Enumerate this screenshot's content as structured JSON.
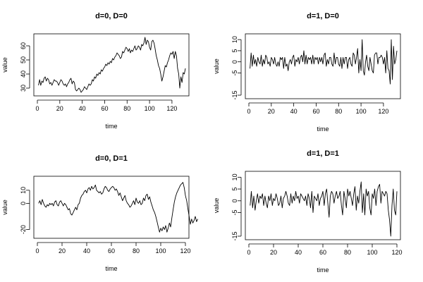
{
  "chart_data": [
    {
      "type": "line",
      "title": "d=0, D=0",
      "xlabel": "time",
      "ylabel": "value",
      "xlim": [
        0,
        132
      ],
      "ylim": [
        27,
        66
      ],
      "xticks": [
        0,
        20,
        40,
        60,
        80,
        100,
        120
      ],
      "yticks": [
        30,
        40,
        50,
        60
      ],
      "series": [
        {
          "values": [
            32,
            36,
            32,
            35,
            34,
            37,
            38,
            35,
            37,
            36,
            33,
            34,
            32,
            34,
            36,
            35,
            35,
            34,
            32,
            34,
            36,
            35,
            33,
            32,
            33,
            31,
            33,
            34,
            36,
            37,
            33,
            35,
            34,
            29,
            28,
            29,
            30,
            29,
            27,
            28,
            29,
            31,
            30,
            29,
            31,
            33,
            32,
            33,
            36,
            35,
            38,
            37,
            40,
            39,
            41,
            40,
            43,
            42,
            44,
            45,
            47,
            46,
            48,
            47,
            49,
            48,
            51,
            50,
            52,
            53,
            55,
            54,
            53,
            51,
            52,
            56,
            55,
            57,
            59,
            58,
            56,
            58,
            55,
            57,
            56,
            58,
            60,
            57,
            58,
            60,
            59,
            57,
            61,
            60,
            62,
            66,
            61,
            64,
            63,
            59,
            57,
            63,
            64,
            62,
            58,
            53,
            50,
            46,
            44,
            40,
            35,
            38,
            42,
            46,
            45,
            48,
            50,
            53,
            55,
            54,
            56,
            51,
            56,
            53,
            44,
            40,
            30,
            38,
            34,
            41,
            40,
            44
          ]
        }
      ]
    },
    {
      "type": "line",
      "title": "d=1, D=0",
      "xlabel": "time",
      "ylabel": "value",
      "xlim": [
        0,
        132
      ],
      "ylim": [
        -15,
        11
      ],
      "xticks": [
        0,
        20,
        40,
        60,
        80,
        100,
        120
      ],
      "yticks": [
        -15,
        -5,
        0,
        5,
        10
      ],
      "series": [
        {
          "values": [
            -3,
            4,
            -2,
            3,
            -1,
            1,
            -2,
            2,
            0,
            -1,
            3,
            -2,
            1,
            -1,
            3,
            2,
            -1,
            0,
            -2,
            2,
            1,
            -1,
            2,
            -1,
            -2,
            0,
            -2,
            2,
            1,
            2,
            -3,
            2,
            -2,
            -1,
            -4,
            0,
            1,
            -1,
            2,
            3,
            -2,
            1,
            0,
            2,
            -1,
            2,
            3,
            0,
            5,
            -1,
            3,
            -1,
            2,
            1,
            2,
            -1,
            3,
            -1,
            2,
            1,
            2,
            -1,
            2,
            0,
            2,
            -1,
            3,
            4,
            -2,
            1,
            -1,
            2,
            2,
            -1,
            -2,
            4,
            -1,
            2,
            2,
            -1,
            -2,
            2,
            -3,
            2,
            -1,
            2,
            2,
            -3,
            1,
            2,
            -1,
            -2,
            4,
            3,
            -1,
            2,
            6,
            -5,
            1,
            -4,
            10,
            -4,
            -6,
            0,
            3,
            -2,
            -4,
            2,
            -1,
            -4,
            -5,
            3,
            4,
            4,
            -1,
            2,
            2,
            3,
            2,
            -1,
            2,
            -5,
            5,
            -3,
            -4,
            -10,
            10,
            -8,
            7,
            -1,
            1,
            5
          ]
        }
      ]
    },
    {
      "type": "line",
      "title": "d=0, D=1",
      "xlabel": "time",
      "ylabel": "value",
      "xlim": [
        0,
        120
      ],
      "ylim": [
        -24,
        18
      ],
      "xticks": [
        0,
        20,
        40,
        60,
        80,
        100,
        120
      ],
      "yticks": [
        -20,
        0,
        10
      ],
      "series": [
        {
          "values": [
            0,
            2,
            -1,
            3,
            0,
            -2,
            -3,
            -1,
            -2,
            0,
            -1,
            0,
            -2,
            1,
            2,
            -1,
            -2,
            1,
            2,
            0,
            -2,
            0,
            -1,
            -3,
            -5,
            -4,
            -8,
            -9,
            -7,
            -5,
            -3,
            -5,
            -1,
            0,
            4,
            6,
            7,
            9,
            10,
            8,
            11,
            12,
            10,
            13,
            11,
            12,
            14,
            10,
            9,
            8,
            9,
            7,
            8,
            11,
            13,
            12,
            10,
            9,
            11,
            12,
            13,
            12,
            10,
            11,
            9,
            6,
            8,
            5,
            2,
            4,
            6,
            2,
            0,
            -1,
            -3,
            -2,
            0,
            2,
            -1,
            4,
            1,
            0,
            2,
            -1,
            0,
            4,
            2,
            6,
            7,
            3,
            5,
            1,
            -2,
            -5,
            -7,
            -10,
            -14,
            -18,
            -22,
            -19,
            -21,
            -18,
            -20,
            -17,
            -22,
            -19,
            -15,
            -18,
            -11,
            -5,
            1,
            5,
            8,
            10,
            12,
            14,
            15,
            16,
            12,
            6,
            2,
            -4,
            -10,
            -16,
            -12,
            -15,
            -13,
            -10,
            -14,
            -12
          ]
        }
      ]
    },
    {
      "type": "line",
      "title": "d=1, D=1",
      "xlabel": "time",
      "ylabel": "value",
      "xlim": [
        0,
        120
      ],
      "ylim": [
        -15,
        11
      ],
      "xticks": [
        0,
        20,
        40,
        60,
        80,
        100,
        120
      ],
      "yticks": [
        -15,
        -5,
        0,
        5,
        10
      ],
      "series": [
        {
          "values": [
            -2,
            4,
            -3,
            2,
            -4,
            0,
            3,
            -1,
            2,
            1,
            3,
            -2,
            2,
            -1,
            -3,
            2,
            0,
            3,
            -2,
            1,
            0,
            3,
            1,
            -2,
            -1,
            2,
            -3,
            1,
            2,
            4,
            2,
            -1,
            -2,
            3,
            -1,
            2,
            0,
            4,
            1,
            2,
            -1,
            3,
            2,
            1,
            0,
            2,
            -2,
            3,
            1,
            -3,
            4,
            -5,
            2,
            1,
            0,
            3,
            -2,
            1,
            2,
            4,
            -2,
            3,
            5,
            -1,
            -7,
            2,
            4,
            3,
            -1,
            2,
            4,
            1,
            2,
            4,
            -2,
            -6,
            4,
            1,
            -3,
            5,
            2,
            4,
            1,
            -2,
            3,
            6,
            -4,
            2,
            -1,
            4,
            8,
            -5,
            3,
            -6,
            5,
            2,
            4,
            -3,
            -6,
            3,
            1,
            5,
            -2,
            4,
            6,
            7,
            -1,
            4,
            3,
            2,
            4,
            3,
            -4,
            -8,
            -15,
            -2,
            5,
            -4,
            -6,
            4
          ]
        }
      ]
    }
  ]
}
